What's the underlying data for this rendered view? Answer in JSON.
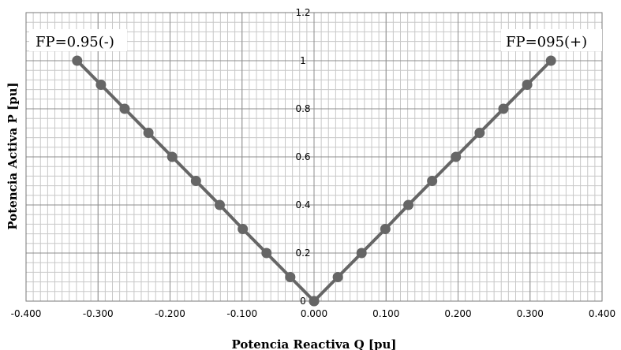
{
  "chart_data": {
    "type": "scatter",
    "title": "",
    "xlabel": "Potencia Reactiva Q [pu]",
    "ylabel": "Potencia Activa P [pu]",
    "xlim": [
      -0.4,
      0.4
    ],
    "ylim": [
      0,
      1.2
    ],
    "x_ticks": [
      "-0.400",
      "-0.300",
      "-0.200",
      "-0.100",
      "0.000",
      "0.100",
      "0.200",
      "0.300",
      "0.400"
    ],
    "y_ticks": [
      "0",
      "0.2",
      "0.4",
      "0.6",
      "0.8",
      "1",
      "1.2"
    ],
    "grid": true,
    "legend": "none",
    "annotations": [
      "FP=0.95(-)",
      "FP=095(+)"
    ],
    "colors": {
      "series": "#666666",
      "grid_major": "#8c8c8c",
      "grid_minor": "#c8c8c8"
    },
    "series": [
      {
        "x": [
          -0.329,
          -0.296,
          -0.263,
          -0.23,
          -0.197,
          -0.164,
          -0.131,
          -0.099,
          -0.066,
          -0.033,
          0.0
        ],
        "y": [
          1.0,
          0.9,
          0.8,
          0.7,
          0.6,
          0.5,
          0.4,
          0.3,
          0.2,
          0.1,
          0.0
        ]
      },
      {
        "x": [
          0.0,
          0.033,
          0.066,
          0.099,
          0.131,
          0.164,
          0.197,
          0.23,
          0.263,
          0.296,
          0.329
        ],
        "y": [
          0.0,
          0.1,
          0.2,
          0.3,
          0.4,
          0.5,
          0.6,
          0.7,
          0.8,
          0.9,
          1.0
        ]
      }
    ]
  }
}
